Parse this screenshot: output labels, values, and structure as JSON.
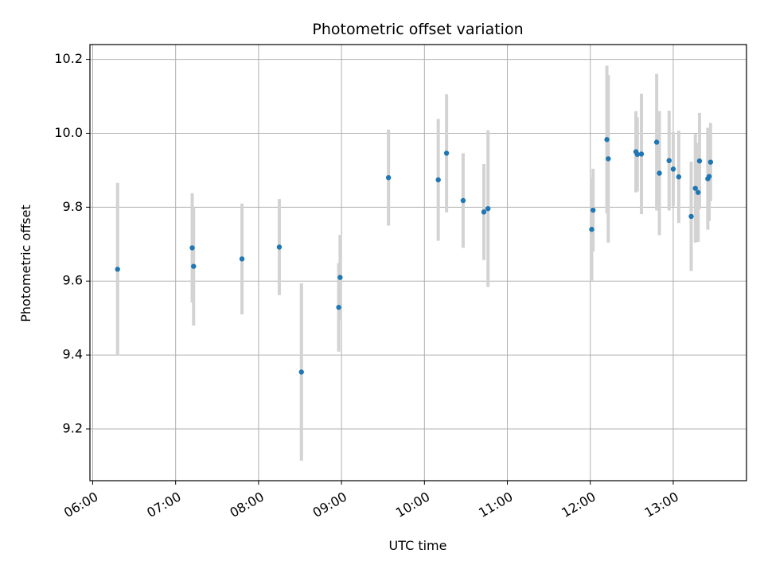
{
  "chart_data": {
    "type": "scatter",
    "title": "Photometric offset variation",
    "xlabel": "UTC time",
    "ylabel": "Photometric offset",
    "x_tick_labels": [
      "06:00",
      "07:00",
      "08:00",
      "09:00",
      "10:00",
      "11:00",
      "12:00",
      "13:00"
    ],
    "y_tick_labels": [
      "9.2",
      "9.4",
      "9.6",
      "9.8",
      "10.0",
      "10.2"
    ],
    "xlim": [
      "05:58",
      "13:53"
    ],
    "ylim": [
      9.06,
      10.24
    ],
    "grid": true,
    "point_color": "#1f77b4",
    "errorbar_color": "#d3d3d3",
    "points": [
      {
        "t": "06:18",
        "y": 9.632,
        "err": 0.234
      },
      {
        "t": "07:12",
        "y": 9.69,
        "err": 0.148
      },
      {
        "t": "07:13",
        "y": 9.64,
        "err": 0.16
      },
      {
        "t": "07:48",
        "y": 9.66,
        "err": 0.15
      },
      {
        "t": "08:15",
        "y": 9.692,
        "err": 0.13
      },
      {
        "t": "08:31",
        "y": 9.354,
        "err": 0.24
      },
      {
        "t": "08:58",
        "y": 9.529,
        "err": 0.12
      },
      {
        "t": "08:59",
        "y": 9.61,
        "err": 0.115
      },
      {
        "t": "09:34",
        "y": 9.88,
        "err": 0.13
      },
      {
        "t": "10:10",
        "y": 9.874,
        "err": 0.165
      },
      {
        "t": "10:16",
        "y": 9.946,
        "err": 0.16
      },
      {
        "t": "10:28",
        "y": 9.818,
        "err": 0.128
      },
      {
        "t": "10:43",
        "y": 9.787,
        "err": 0.13
      },
      {
        "t": "10:46",
        "y": 9.796,
        "err": 0.212
      },
      {
        "t": "12:01",
        "y": 9.74,
        "err": 0.14
      },
      {
        "t": "12:02",
        "y": 9.792,
        "err": 0.112
      },
      {
        "t": "12:12",
        "y": 9.983,
        "err": 0.2
      },
      {
        "t": "12:13",
        "y": 9.931,
        "err": 0.227
      },
      {
        "t": "12:33",
        "y": 9.95,
        "err": 0.11
      },
      {
        "t": "12:34",
        "y": 9.943,
        "err": 0.1
      },
      {
        "t": "12:37",
        "y": 9.944,
        "err": 0.163
      },
      {
        "t": "12:48",
        "y": 9.976,
        "err": 0.185
      },
      {
        "t": "12:50",
        "y": 9.892,
        "err": 0.168
      },
      {
        "t": "12:57",
        "y": 9.926,
        "err": 0.135
      },
      {
        "t": "13:00",
        "y": 9.903,
        "err": 0.1
      },
      {
        "t": "13:04",
        "y": 9.882,
        "err": 0.125
      },
      {
        "t": "13:13",
        "y": 9.775,
        "err": 0.148
      },
      {
        "t": "13:16",
        "y": 9.851,
        "err": 0.147
      },
      {
        "t": "13:18",
        "y": 9.84,
        "err": 0.134
      },
      {
        "t": "13:19",
        "y": 9.925,
        "err": 0.13
      },
      {
        "t": "13:25",
        "y": 9.877,
        "err": 0.138
      },
      {
        "t": "13:26",
        "y": 9.883,
        "err": 0.12
      },
      {
        "t": "13:27",
        "y": 9.922,
        "err": 0.106
      }
    ]
  }
}
